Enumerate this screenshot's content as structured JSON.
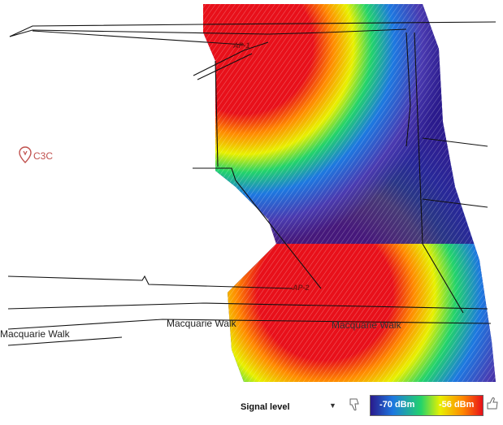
{
  "map": {
    "streets": [
      "Macquarie Walk",
      "Macquarie Walk",
      "Macquarie Walk"
    ],
    "place": {
      "name": "C3C",
      "icon": "map-pin-icon"
    },
    "access_points": [
      "AP-1",
      "AP-2"
    ]
  },
  "legend": {
    "title": "Signal level",
    "low_value": "-70 dBm",
    "high_value": "-56 dBm",
    "colors": [
      "#2a1a8c",
      "#1d78e0",
      "#23d36b",
      "#e8f000",
      "#ff8a00",
      "#e8101a"
    ],
    "dislike_icon": "thumbs-down-icon",
    "like_icon": "thumbs-up-icon",
    "dropdown_icon": "dropdown-arrow-icon"
  }
}
